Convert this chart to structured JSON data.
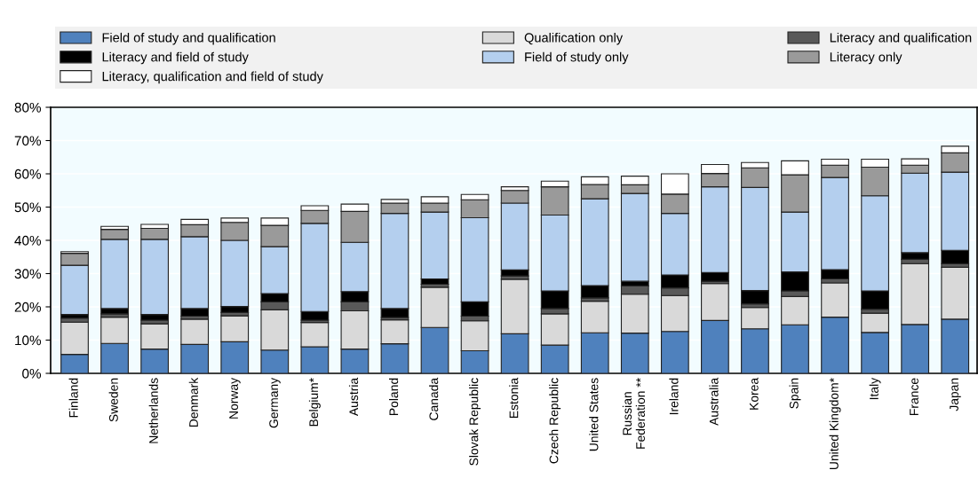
{
  "chart_data": {
    "type": "bar",
    "stacked": true,
    "categories": [
      "Finland",
      "Sweden",
      "Netherlands",
      "Denmark",
      "Norway",
      "Germany",
      "Belgium*",
      "Austria",
      "Poland",
      "Canada",
      "Slovak Republic",
      "Estonia",
      "Czech Republic",
      "United States",
      "Russian\nFederation **",
      "Ireland",
      "Australia",
      "Korea",
      "Spain",
      "United Kingdom*",
      "Italy",
      "France",
      "Japan"
    ],
    "series": [
      {
        "name": "Field of study and qualification",
        "color": "#4f81bd",
        "values": [
          5.7,
          9.0,
          7.3,
          8.7,
          9.5,
          7.0,
          8.0,
          7.3,
          8.9,
          13.8,
          6.8,
          11.9,
          8.5,
          12.2,
          12.1,
          12.6,
          15.9,
          13.4,
          14.6,
          16.9,
          12.3,
          14.7,
          16.3
        ]
      },
      {
        "name": "Qualification only",
        "color": "#d9d9d9",
        "values": [
          9.7,
          7.9,
          7.6,
          7.6,
          7.8,
          12.1,
          7.3,
          11.5,
          7.2,
          12.1,
          9.0,
          16.4,
          9.4,
          9.5,
          11.7,
          10.8,
          11.1,
          6.4,
          8.5,
          10.3,
          5.8,
          18.3,
          15.6
        ]
      },
      {
        "name": "Literacy and qualification",
        "color": "#595959",
        "values": [
          1.2,
          1.0,
          1.1,
          0.9,
          1.0,
          2.4,
          0.7,
          2.7,
          0.7,
          0.9,
          1.4,
          1.0,
          1.6,
          1.0,
          2.5,
          2.3,
          0.7,
          1.1,
          1.7,
          1.2,
          1.2,
          1.3,
          1.1
        ]
      },
      {
        "name": "Literacy and field of study",
        "color": "#000000",
        "values": [
          1.1,
          1.6,
          1.7,
          2.3,
          1.8,
          2.5,
          2.6,
          3.1,
          2.7,
          1.6,
          4.3,
          1.8,
          5.3,
          3.7,
          1.4,
          3.9,
          2.6,
          4.0,
          5.7,
          2.8,
          5.5,
          2.0,
          4.0
        ]
      },
      {
        "name": "Field of study only",
        "color": "#b4cfee",
        "values": [
          14.8,
          20.8,
          22.6,
          21.6,
          19.9,
          14.1,
          26.5,
          14.8,
          28.6,
          20.1,
          25.3,
          20.1,
          22.8,
          26.1,
          26.4,
          18.5,
          25.8,
          31.0,
          18.0,
          27.7,
          28.6,
          23.9,
          23.5
        ]
      },
      {
        "name": "Literacy only",
        "color": "#9a9a9a",
        "values": [
          3.6,
          3.0,
          3.3,
          3.6,
          5.4,
          6.4,
          3.9,
          9.3,
          3.1,
          2.7,
          5.4,
          3.8,
          8.5,
          4.3,
          2.6,
          5.8,
          4.0,
          5.9,
          11.2,
          3.7,
          8.6,
          2.4,
          5.8
        ]
      },
      {
        "name": "Literacy, qualification and field of study",
        "color": "#ffffff",
        "values": [
          0.5,
          0.9,
          1.2,
          1.6,
          1.3,
          2.2,
          1.4,
          2.2,
          1.1,
          1.9,
          1.6,
          1.1,
          1.7,
          2.3,
          2.6,
          6.1,
          2.7,
          1.6,
          4.2,
          1.8,
          2.4,
          1.9,
          2.0
        ]
      }
    ],
    "ylim": [
      0,
      80
    ],
    "yticks": [
      {
        "value": 0,
        "label": "0%"
      },
      {
        "value": 10,
        "label": "10%"
      },
      {
        "value": 20,
        "label": "20%"
      },
      {
        "value": 30,
        "label": "30%"
      },
      {
        "value": 40,
        "label": "40%"
      },
      {
        "value": 50,
        "label": "50%"
      },
      {
        "value": 60,
        "label": "60%"
      },
      {
        "value": 70,
        "label": "70%"
      },
      {
        "value": 80,
        "label": "80%"
      }
    ],
    "grid": "y",
    "legend": "top"
  }
}
